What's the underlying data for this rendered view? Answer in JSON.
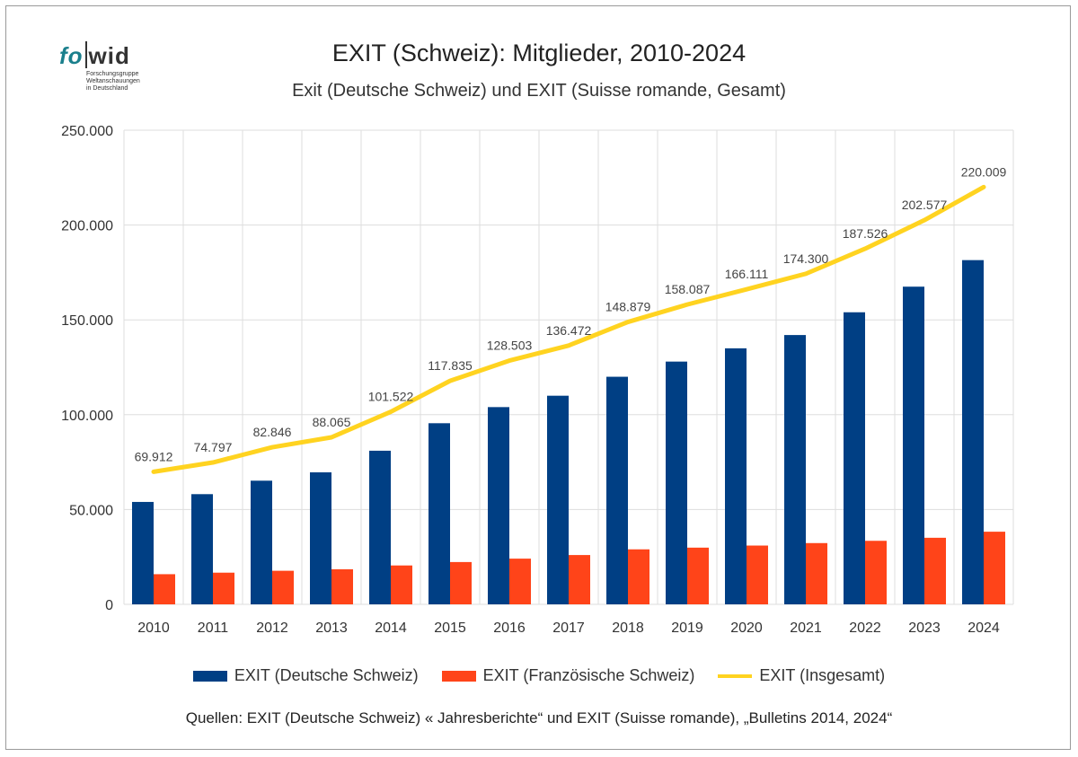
{
  "logo": {
    "left": "fo",
    "right": "wid",
    "tagline": [
      "Forschungsgruppe",
      "Weltanschauungen",
      "in Deutschland"
    ]
  },
  "colors": {
    "deutsch": "#003f84",
    "franzoesisch": "#ff4419",
    "gesamt": "#ffd320",
    "grid": "#dddddd"
  },
  "source": "Quellen: EXIT (Deutsche Schweiz) « Jahresberichte“ und EXIT (Suisse romande), „Bulletins 2014, 2024“",
  "chart_data": {
    "type": "bar",
    "title": "EXIT (Schweiz): Mitglieder, 2010-2024",
    "subtitle": "Exit (Deutsche Schweiz) und EXIT (Suisse romande, Gesamt)",
    "categories": [
      "2010",
      "2011",
      "2012",
      "2013",
      "2014",
      "2015",
      "2016",
      "2017",
      "2018",
      "2019",
      "2020",
      "2021",
      "2022",
      "2023",
      "2024"
    ],
    "ylim": [
      0,
      250000
    ],
    "yticks": [
      0,
      50000,
      100000,
      150000,
      200000,
      250000
    ],
    "ytick_labels": [
      "0",
      "50.000",
      "100.000",
      "150.000",
      "200.000",
      "250.000"
    ],
    "grid": true,
    "legend_position": "bottom",
    "series": [
      {
        "name": "EXIT (Deutsche Schweiz)",
        "type": "bar",
        "values": [
          54000,
          58100,
          65200,
          69600,
          81000,
          95500,
          104000,
          110000,
          120000,
          128000,
          135000,
          142000,
          154000,
          167500,
          181500
        ]
      },
      {
        "name": "EXIT (Französische Schweiz)",
        "type": "bar",
        "values": [
          15900,
          16700,
          17700,
          18500,
          20500,
          22300,
          24100,
          26000,
          29000,
          29900,
          31000,
          32300,
          33500,
          35100,
          38300
        ]
      },
      {
        "name": "EXIT (Insgesamt)",
        "type": "line",
        "values": [
          69912,
          74797,
          82846,
          88065,
          101522,
          117835,
          128503,
          136472,
          148879,
          158087,
          166111,
          174300,
          187526,
          202577,
          220009
        ],
        "labels": [
          "69.912",
          "74.797",
          "82.846",
          "88.065",
          "101.522",
          "117.835",
          "128.503",
          "136.472",
          "148.879",
          "158.087",
          "166.111",
          "174.300",
          "187.526",
          "202.577",
          "220.009"
        ]
      }
    ]
  }
}
